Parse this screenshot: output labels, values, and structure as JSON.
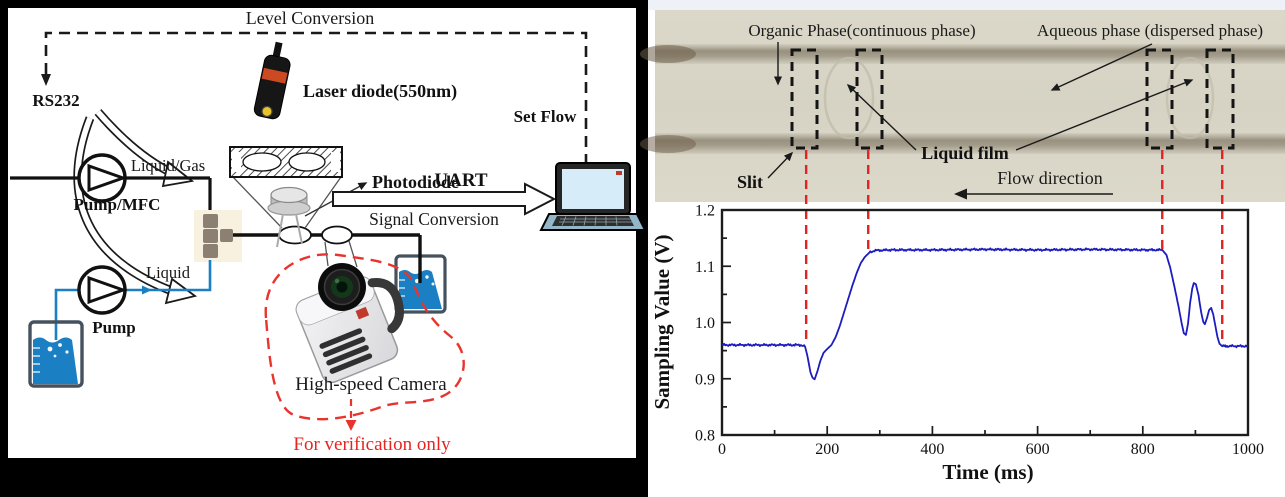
{
  "figure": {
    "left_panel": {
      "labels": {
        "level_conversion": "Level Conversion",
        "rs232": "RS232",
        "laser_diode": "Laser diode(550nm)",
        "photodiode": "Photodiode",
        "set_flow": "Set Flow",
        "uart": "UART",
        "signal_conversion": "Signal Conversion",
        "liquid_gas": "Liquid/Gas",
        "pump_mfc": "Pump/MFC",
        "liquid": "Liquid",
        "pump": "Pump",
        "high_speed_camera": "High-speed Camera",
        "for_verification_only": "For verification only"
      },
      "colors": {
        "liquid_blue": "#1b7fc4",
        "annotation_red": "#e8342c",
        "tee_gray": "#8b8072"
      }
    },
    "right_panel": {
      "photo_labels": {
        "organic_phase": "Organic Phase(continuous phase)",
        "aqueous_phase": "Aqueous phase (dispersed phase)",
        "liquid_film": "Liquid film",
        "slit": "Slit",
        "flow_direction": "Flow direction"
      }
    }
  },
  "chart_data": {
    "type": "line",
    "title": "",
    "xlabel": "Time (ms)",
    "ylabel": "Sampling Value (V)",
    "xlim": [
      0,
      1000
    ],
    "ylim": [
      0.8,
      1.2
    ],
    "xticks": [
      0,
      200,
      400,
      600,
      800,
      1000
    ],
    "xtick_labels": [
      "0",
      "200",
      "400",
      "600",
      "800",
      "1000"
    ],
    "xticks_minor": [
      100,
      300,
      500,
      700,
      900
    ],
    "yticks": [
      0.8,
      0.9,
      1.0,
      1.1,
      1.2
    ],
    "ytick_labels": [
      "0.8",
      "0.9",
      "1.0",
      "1.1",
      "1.2"
    ],
    "yticks_minor": [
      0.85,
      0.95,
      1.05,
      1.15
    ],
    "grid": false,
    "legend": "none",
    "line_color": "#1c1cc0",
    "series": [
      {
        "name": "photodiode sampling value",
        "points": [
          [
            0,
            0.96
          ],
          [
            40,
            0.96
          ],
          [
            80,
            0.96
          ],
          [
            120,
            0.96
          ],
          [
            150,
            0.96
          ],
          [
            158,
            0.957
          ],
          [
            163,
            0.938
          ],
          [
            168,
            0.912
          ],
          [
            172,
            0.902
          ],
          [
            176,
            0.899
          ],
          [
            181,
            0.912
          ],
          [
            187,
            0.932
          ],
          [
            193,
            0.946
          ],
          [
            199,
            0.952
          ],
          [
            208,
            0.96
          ],
          [
            216,
            0.974
          ],
          [
            224,
            0.994
          ],
          [
            232,
            1.018
          ],
          [
            240,
            1.042
          ],
          [
            248,
            1.066
          ],
          [
            256,
            1.088
          ],
          [
            264,
            1.106
          ],
          [
            272,
            1.117
          ],
          [
            280,
            1.124
          ],
          [
            290,
            1.128
          ],
          [
            320,
            1.129
          ],
          [
            400,
            1.129
          ],
          [
            500,
            1.13
          ],
          [
            600,
            1.129
          ],
          [
            700,
            1.13
          ],
          [
            800,
            1.129
          ],
          [
            837,
            1.129
          ],
          [
            845,
            1.12
          ],
          [
            852,
            1.098
          ],
          [
            860,
            1.064
          ],
          [
            868,
            1.028
          ],
          [
            874,
            0.998
          ],
          [
            878,
            0.981
          ],
          [
            882,
            0.978
          ],
          [
            886,
            0.998
          ],
          [
            890,
            1.035
          ],
          [
            894,
            1.06
          ],
          [
            897,
            1.07
          ],
          [
            901,
            1.068
          ],
          [
            906,
            1.048
          ],
          [
            911,
            1.018
          ],
          [
            915,
            1.001
          ],
          [
            918,
            0.997
          ],
          [
            922,
            1.008
          ],
          [
            926,
            1.022
          ],
          [
            930,
            1.026
          ],
          [
            934,
            1.014
          ],
          [
            938,
            0.994
          ],
          [
            942,
            0.974
          ],
          [
            946,
            0.962
          ],
          [
            951,
            0.958
          ],
          [
            960,
            0.958
          ],
          [
            980,
            0.958
          ],
          [
            1000,
            0.958
          ]
        ]
      }
    ],
    "annotations": {
      "description": "red dashed lines linking slit positions in photo to signal features",
      "red_line_times_ms": [
        160,
        278,
        837,
        951
      ],
      "red_line_end_values_v": [
        0.96,
        1.129,
        1.129,
        0.958
      ],
      "color": "#e02424"
    }
  }
}
